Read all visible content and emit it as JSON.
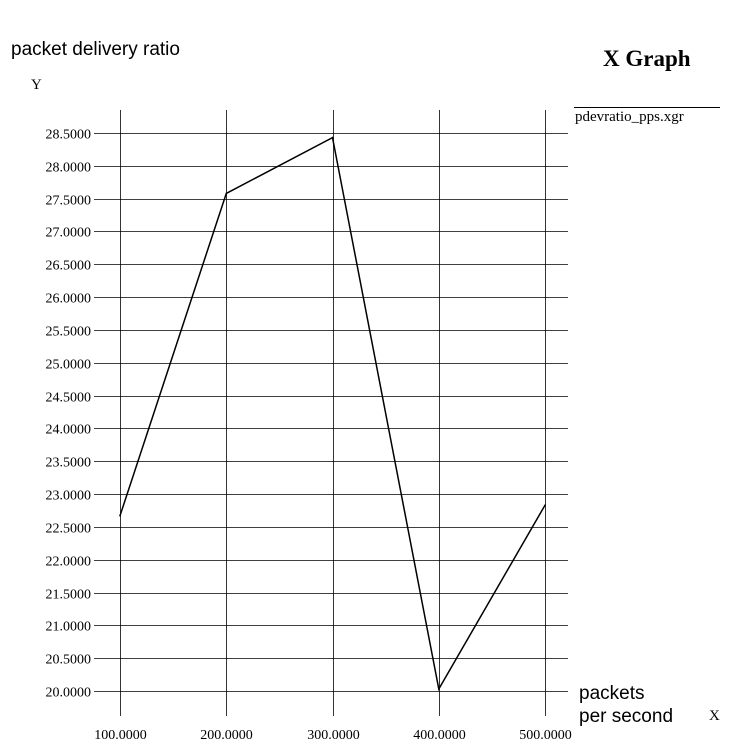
{
  "chart_data": {
    "type": "line",
    "title": "X Graph",
    "ylabel": "packet delivery ratio",
    "y_axis_letter": "Y",
    "xlabel_line1": "packets",
    "xlabel_line2": "per second",
    "x_axis_letter": "X",
    "xlim": [
      100,
      500
    ],
    "ylim": [
      20,
      28.5
    ],
    "x_ticks": [
      "100.0000",
      "200.0000",
      "300.0000",
      "400.0000",
      "500.0000"
    ],
    "y_ticks": [
      "28.5000",
      "28.0000",
      "27.5000",
      "27.0000",
      "26.5000",
      "26.0000",
      "25.5000",
      "25.0000",
      "24.5000",
      "24.0000",
      "23.5000",
      "23.0000",
      "22.5000",
      "22.0000",
      "21.5000",
      "21.0000",
      "20.5000",
      "20.0000"
    ],
    "grid": true,
    "series": [
      {
        "name": "pdevratio_pps.xgr",
        "x": [
          100,
          200,
          300,
          400,
          500
        ],
        "y": [
          22.67,
          27.58,
          28.43,
          20.03,
          22.83
        ],
        "color": "#000000"
      }
    ]
  }
}
